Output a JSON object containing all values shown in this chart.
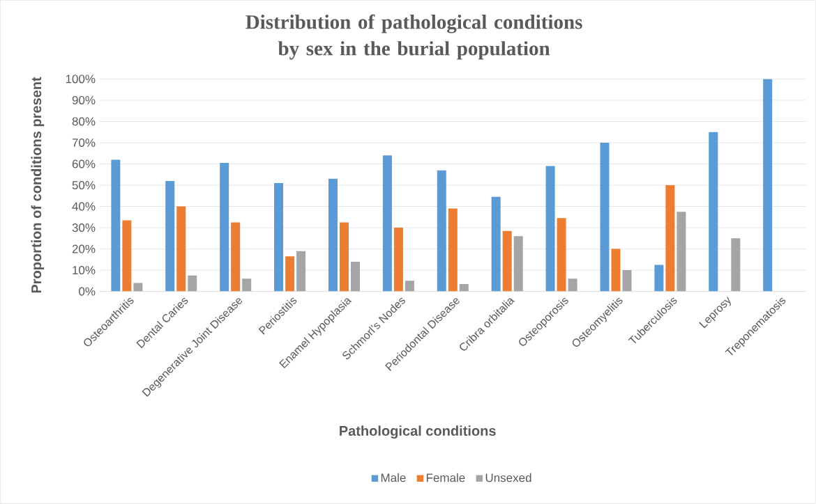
{
  "chart_data": {
    "type": "bar",
    "title": "Distribution of pathological conditions by sex in the burial population",
    "xlabel": "Pathological conditions",
    "ylabel": "Proportion of conditions present",
    "categories": [
      "Osteoarthritis",
      "Dental Caries",
      "Degenerative Joint Disease",
      "Periostitis",
      "Enamel Hypoplasia",
      "Schmorl’s Nodes",
      "Periodontal Disease",
      "Cribra orbitalia",
      "Osteoporosis",
      "Osteomyelitis",
      "Tuberculosis",
      "Leprosy",
      "Treponematosis"
    ],
    "series": [
      {
        "name": "Male",
        "color": "#5b9bd5",
        "values": [
          62,
          52,
          60.5,
          51,
          53,
          64,
          57,
          44.5,
          59,
          70,
          12.5,
          75,
          100
        ]
      },
      {
        "name": "Female",
        "color": "#ed7d31",
        "values": [
          33.5,
          40,
          32.5,
          16.5,
          32.5,
          30,
          39,
          28.5,
          34.5,
          20,
          50,
          0,
          0
        ]
      },
      {
        "name": "Unsexed",
        "color": "#a5a5a5",
        "values": [
          4,
          7.5,
          6,
          19,
          14,
          5,
          3.5,
          26,
          6,
          10,
          37.5,
          25,
          0
        ]
      }
    ],
    "ylim": [
      0,
      100
    ],
    "yticks": [
      {
        "value": 0,
        "label": "0%"
      },
      {
        "value": 10,
        "label": "10%"
      },
      {
        "value": 20,
        "label": "20%"
      },
      {
        "value": 30,
        "label": "30%"
      },
      {
        "value": 40,
        "label": "40%"
      },
      {
        "value": 50,
        "label": "50%"
      },
      {
        "value": 60,
        "label": "60%"
      },
      {
        "value": 70,
        "label": "70%"
      },
      {
        "value": 80,
        "label": "80%"
      },
      {
        "value": 90,
        "label": "90%"
      },
      {
        "value": 100,
        "label": "100%"
      }
    ],
    "grid": "y",
    "legend": "bottom"
  }
}
